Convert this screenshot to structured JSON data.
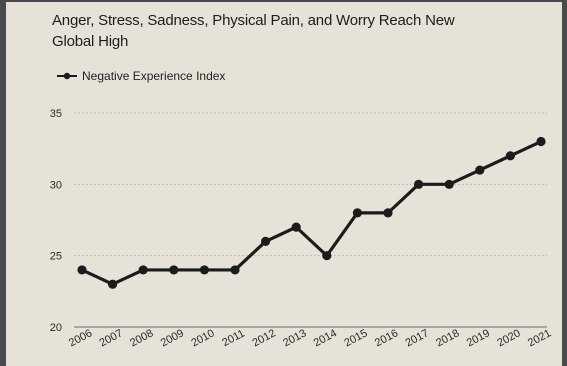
{
  "chart_data": {
    "type": "line",
    "title": "Anger, Stress, Sadness, Physical Pain, and Worry Reach New Global High",
    "xlabel": "",
    "ylabel": "",
    "x": [
      "2006",
      "2007",
      "2008",
      "2009",
      "2010",
      "2011",
      "2012",
      "2013",
      "2014",
      "2015",
      "2016",
      "2017",
      "2018",
      "2019",
      "2020",
      "2021"
    ],
    "series": [
      {
        "name": "Negative Experience Index",
        "values": [
          24,
          23,
          24,
          24,
          24,
          24,
          26,
          27,
          25,
          28,
          28,
          30,
          30,
          31,
          32,
          33
        ]
      }
    ],
    "ylim": [
      20,
      35
    ],
    "yticks": [
      "20",
      "25",
      "30",
      "35"
    ],
    "grid": "horizontal-dotted",
    "legend_placement": "top-left",
    "line_color": "#1b1b1b"
  }
}
